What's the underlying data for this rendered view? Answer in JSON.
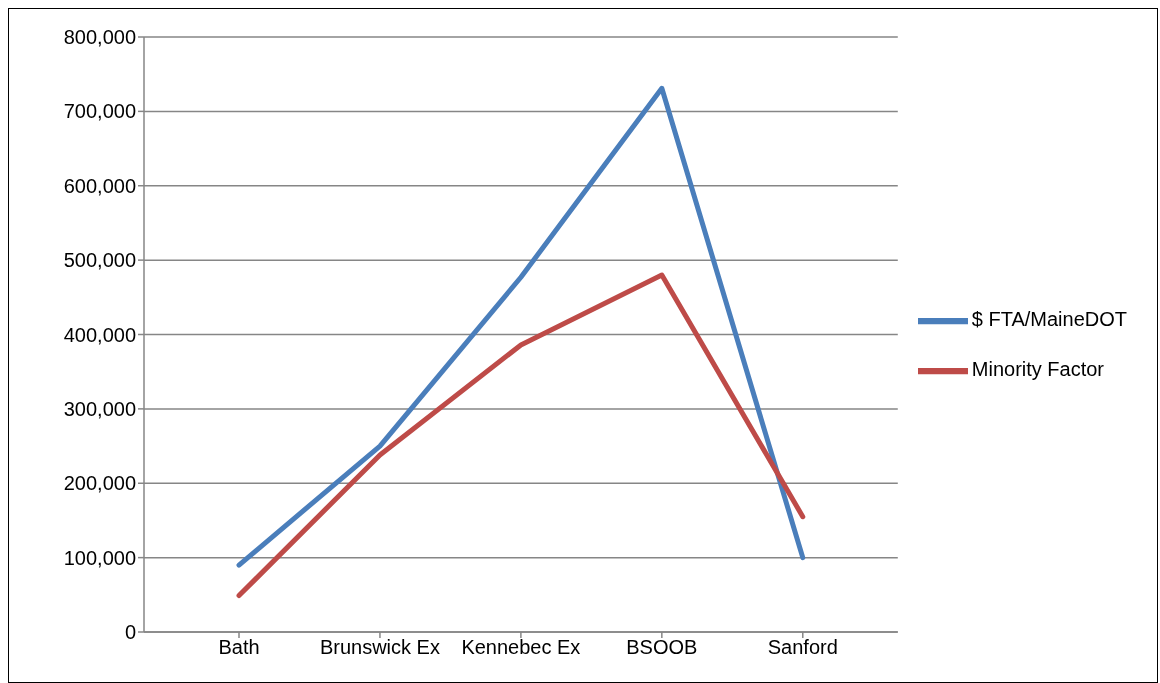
{
  "chart_data": {
    "type": "line",
    "categories": [
      "Bath",
      "Brunswick Ex",
      "Kennebec Ex",
      "BSOOB",
      "Sanford"
    ],
    "series": [
      {
        "name": "$ FTA/MaineDOT",
        "color": "#4a7ebb",
        "values": [
          90000,
          250000,
          477000,
          731000,
          100000
        ]
      },
      {
        "name": "Minority Factor",
        "color": "#be4b48",
        "values": [
          49000,
          238000,
          386000,
          480000,
          155000
        ]
      }
    ],
    "ylim": [
      0,
      800000
    ],
    "yticks": [
      {
        "value": 0,
        "label": "0"
      },
      {
        "value": 100000,
        "label": "100,000"
      },
      {
        "value": 200000,
        "label": "200,000"
      },
      {
        "value": 300000,
        "label": "300,000"
      },
      {
        "value": 400000,
        "label": "400,000"
      },
      {
        "value": 500000,
        "label": "500,000"
      },
      {
        "value": 600000,
        "label": "600,000"
      },
      {
        "value": 700000,
        "label": "700,000"
      },
      {
        "value": 800000,
        "label": "800,000"
      }
    ],
    "grid": "y",
    "legend": "right",
    "marker": "none",
    "line_style": "solid"
  }
}
